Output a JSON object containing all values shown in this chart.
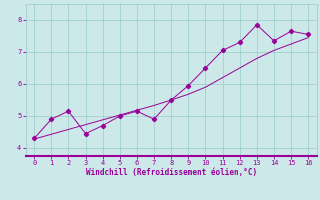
{
  "xlabel": "Windchill (Refroidissement éolien,°C)",
  "x_data": [
    0,
    1,
    2,
    3,
    4,
    5,
    6,
    7,
    8,
    9,
    10,
    11,
    12,
    13,
    14,
    15,
    16
  ],
  "y_zigzag": [
    4.3,
    4.9,
    5.15,
    4.45,
    4.7,
    5.0,
    5.15,
    4.9,
    5.5,
    5.95,
    6.5,
    7.05,
    7.3,
    7.85,
    7.35,
    7.65,
    7.55
  ],
  "y_trend": [
    4.28,
    4.43,
    4.58,
    4.73,
    4.88,
    5.03,
    5.18,
    5.33,
    5.5,
    5.68,
    5.9,
    6.2,
    6.5,
    6.8,
    7.05,
    7.25,
    7.45
  ],
  "line_color": "#990099",
  "bg_color": "#cce8e8",
  "grid_color": "#99cccc",
  "tick_color": "#990099",
  "label_color": "#990099",
  "spine_bottom_color": "#990099",
  "xlim": [
    -0.5,
    16.5
  ],
  "ylim": [
    3.75,
    8.5
  ],
  "yticks": [
    4,
    5,
    6,
    7,
    8
  ],
  "xticks": [
    0,
    1,
    2,
    3,
    4,
    5,
    6,
    7,
    8,
    9,
    10,
    11,
    12,
    13,
    14,
    15,
    16
  ]
}
